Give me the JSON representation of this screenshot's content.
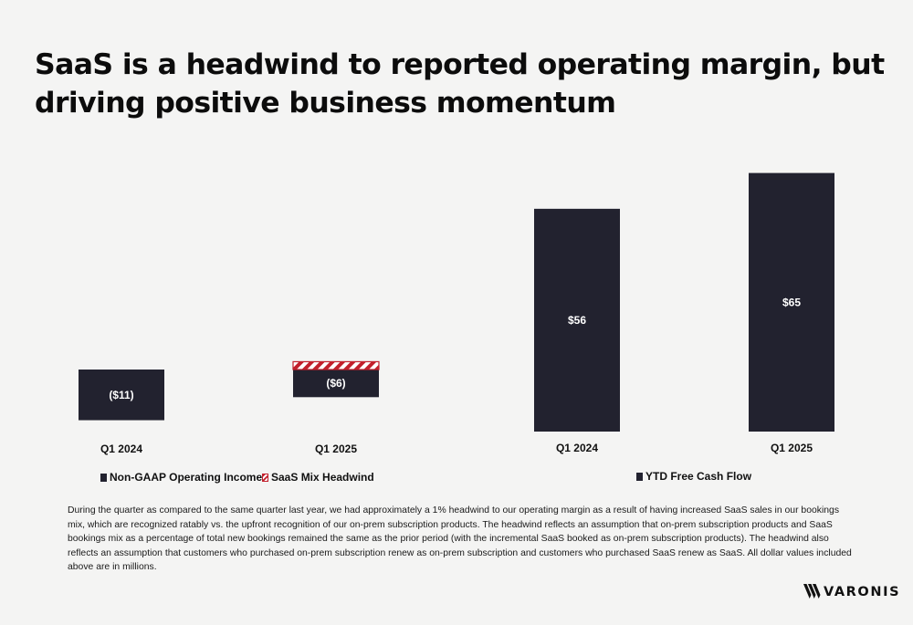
{
  "title": "SaaS is a headwind to reported operating margin, but driving positive business momentum",
  "colors": {
    "bar": "#22222f",
    "headwind": "#c21f2b",
    "background": "#f4f4f3"
  },
  "chart_data": [
    {
      "type": "bar",
      "categories": [
        "Q1 2024",
        "Q1 2025"
      ],
      "series": [
        {
          "name": "Non-GAAP Operating Income",
          "values": [
            -11,
            -6
          ],
          "labels": [
            "($11)",
            "($6)"
          ]
        },
        {
          "name": "SaaS Mix Headwind",
          "values": [
            0,
            1.7
          ]
        }
      ],
      "legend": [
        "Non-GAAP Operating Income",
        "SaaS Mix Headwind"
      ],
      "legend_position": "bottom"
    },
    {
      "type": "bar",
      "categories": [
        "Q1 2024",
        "Q1 2025"
      ],
      "series": [
        {
          "name": "YTD Free Cash Flow",
          "values": [
            56,
            65
          ],
          "labels": [
            "$56",
            "$65"
          ]
        }
      ],
      "legend": [
        "YTD Free Cash Flow"
      ],
      "legend_position": "bottom"
    }
  ],
  "footnote": "During the quarter as compared to the same quarter last year, we had approximately a 1% headwind to our operating margin as a result of having increased SaaS sales in our bookings mix, which are recognized ratably vs. the upfront recognition of our on-prem subscription products. The headwind reflects an assumption that on-prem subscription products and SaaS bookings mix as a percentage of total new bookings remained the same as the prior period (with the incremental SaaS booked as on-prem subscription products). The headwind also reflects an assumption that customers who purchased on-prem subscription renew as on-prem subscription and customers who purchased SaaS renew as SaaS. All dollar values included above are in millions.",
  "logo": {
    "text": "VARONIS",
    "icon": "varonis-logo-icon"
  }
}
